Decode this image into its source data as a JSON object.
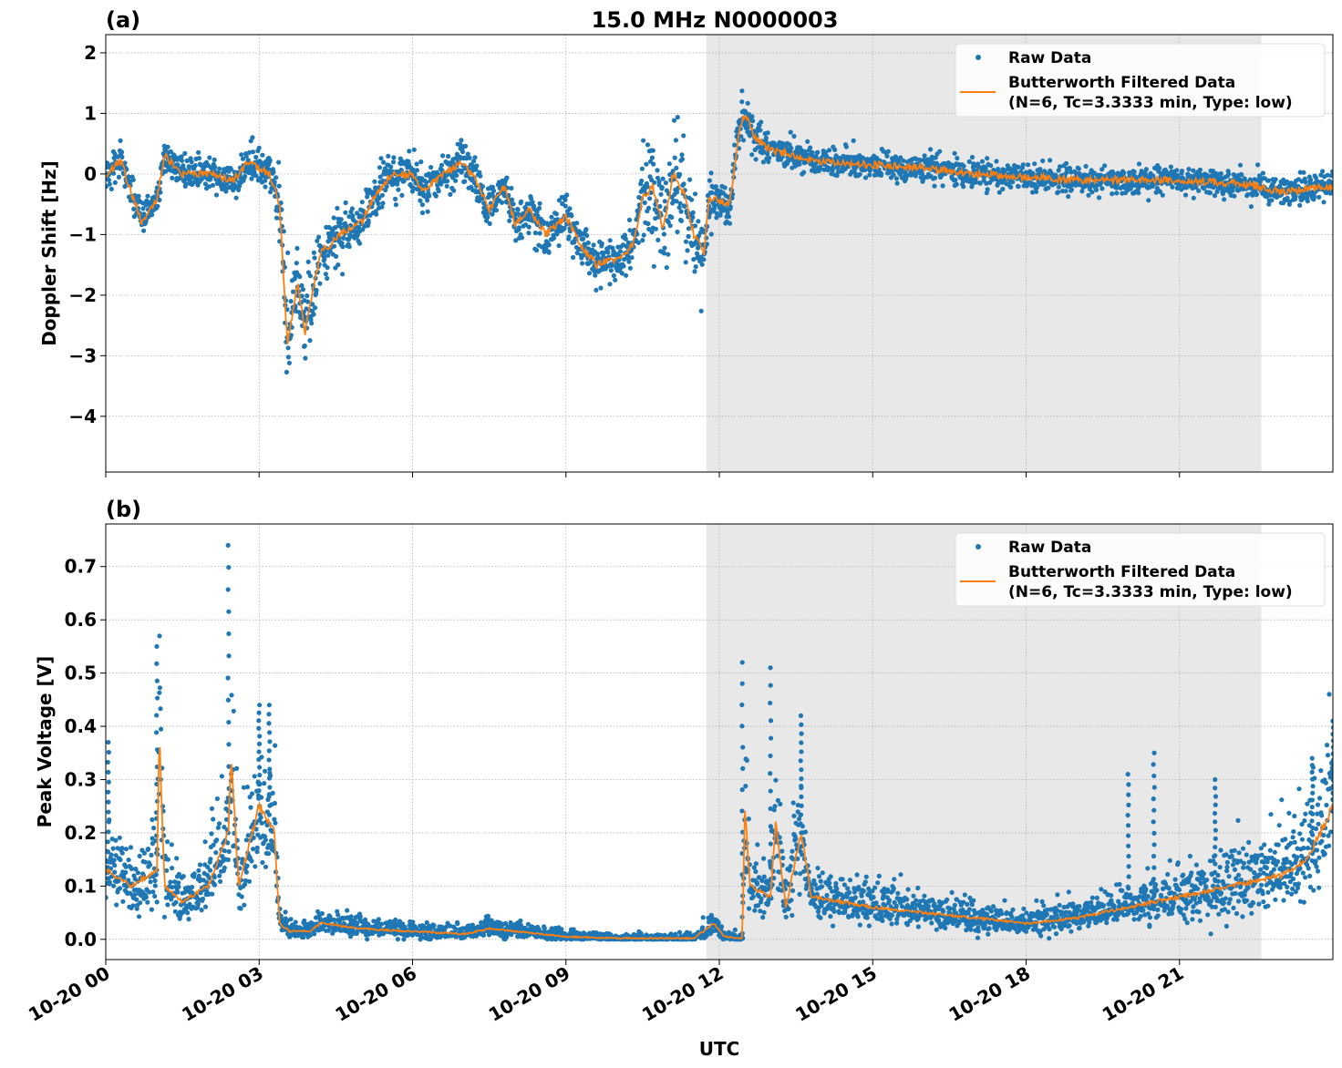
{
  "title": "15.0 MHz N0000003",
  "xlabel": "UTC",
  "x_tick_labels": [
    "10-20 00",
    "10-20 03",
    "10-20 06",
    "10-20 09",
    "10-20 12",
    "10-20 15",
    "10-20 18",
    "10-20 21"
  ],
  "legend": {
    "raw": "Raw Data",
    "filtered_line1": "Butterworth Filtered Data",
    "filtered_line2": "(N=6, Tc=3.3333 min, Type: low)"
  },
  "colors": {
    "raw": "#1f77b4",
    "filtered": "#ff7f0e",
    "shade": "#e8e8e8",
    "grid": "#b0b0b0"
  },
  "chart_data": [
    {
      "type": "scatter+line",
      "panel_label": "(a)",
      "ylabel": "Doppler Shift [Hz]",
      "x_unit": "hours UTC on 10-20",
      "xlim": [
        0,
        24
      ],
      "ylim": [
        -4.92,
        2.3
      ],
      "y_ticks": [
        -4,
        -3,
        -2,
        -1,
        0,
        1,
        2
      ],
      "y_tick_labels": [
        "−4",
        "−3",
        "−2",
        "−1",
        "0",
        "1",
        "2"
      ],
      "grid": true,
      "legend_position": "top-right",
      "shaded_interval": [
        11.75,
        22.6
      ],
      "filtered": {
        "x": [
          0,
          0.3,
          0.7,
          1.0,
          1.15,
          1.5,
          2,
          2.5,
          2.8,
          3.2,
          3.4,
          3.55,
          3.75,
          3.9,
          4.2,
          4.6,
          5.0,
          5.3,
          5.6,
          6.0,
          6.2,
          6.6,
          7.0,
          7.3,
          7.5,
          7.8,
          8.0,
          8.3,
          8.6,
          9.0,
          9.3,
          9.6,
          10.0,
          10.3,
          10.5,
          10.7,
          10.9,
          11.1,
          11.3,
          11.5,
          11.7,
          11.8,
          12.2,
          12.4,
          12.5,
          12.7,
          13.0,
          13.5,
          14,
          15,
          16,
          17,
          18,
          19,
          20,
          21,
          22,
          22.5,
          23,
          23.5,
          24
        ],
        "y": [
          0,
          0.2,
          -0.8,
          -0.4,
          0.3,
          0,
          0,
          -0.1,
          0.2,
          0,
          -0.5,
          -2.8,
          -1.8,
          -2.6,
          -1.3,
          -1.0,
          -0.8,
          -0.3,
          0,
          0,
          -0.3,
          0,
          0.2,
          -0.2,
          -0.6,
          -0.2,
          -0.8,
          -0.6,
          -1.0,
          -0.7,
          -1.2,
          -1.5,
          -1.4,
          -1.2,
          -0.4,
          -0.2,
          -0.9,
          0,
          -0.3,
          -1.0,
          -1.3,
          -0.4,
          -0.5,
          0.8,
          1.0,
          0.6,
          0.4,
          0.3,
          0.2,
          0.15,
          0.1,
          0,
          -0.05,
          -0.1,
          -0.1,
          -0.1,
          -0.15,
          -0.2,
          -0.3,
          -0.25,
          -0.2
        ]
      },
      "raw_spread": {
        "x": [
          0,
          3.3,
          3.5,
          4.2,
          5,
          10.3,
          10.5,
          11.5,
          11.8,
          12.4,
          13,
          14,
          24
        ],
        "y": [
          0.25,
          0.25,
          0.8,
          0.5,
          0.3,
          0.35,
          0.8,
          0.7,
          0.35,
          0.4,
          0.25,
          0.2,
          0.2
        ]
      }
    },
    {
      "type": "scatter+line",
      "panel_label": "(b)",
      "ylabel": "Peak Voltage [V]",
      "x_unit": "hours UTC on 10-20",
      "xlim": [
        0,
        24
      ],
      "ylim": [
        -0.038,
        0.78
      ],
      "y_ticks": [
        0,
        0.1,
        0.2,
        0.3,
        0.4,
        0.5,
        0.6,
        0.7
      ],
      "y_tick_labels": [
        "0.0",
        "0.1",
        "0.2",
        "0.3",
        "0.4",
        "0.5",
        "0.6",
        "0.7"
      ],
      "grid": true,
      "legend_position": "top-right",
      "shaded_interval": [
        11.75,
        22.6
      ],
      "filtered": {
        "x": [
          0,
          0.5,
          1.0,
          1.05,
          1.15,
          1.5,
          2,
          2.4,
          2.45,
          2.6,
          3,
          3.3,
          3.4,
          3.6,
          4,
          4.2,
          5,
          6,
          7,
          7.5,
          8.5,
          9,
          10,
          11.5,
          11.9,
          12.1,
          12.45,
          12.5,
          12.6,
          13,
          13.1,
          13.3,
          13.6,
          13.8,
          15,
          16,
          17,
          18,
          19,
          20,
          21,
          22,
          23,
          23.5,
          24
        ],
        "y": [
          0.13,
          0.1,
          0.13,
          0.38,
          0.1,
          0.07,
          0.1,
          0.2,
          0.35,
          0.1,
          0.25,
          0.2,
          0.03,
          0.015,
          0.015,
          0.03,
          0.02,
          0.015,
          0.01,
          0.02,
          0.01,
          0.005,
          0.002,
          0.002,
          0.03,
          0.005,
          0.002,
          0.25,
          0.1,
          0.08,
          0.22,
          0.06,
          0.2,
          0.08,
          0.06,
          0.05,
          0.04,
          0.03,
          0.04,
          0.06,
          0.08,
          0.1,
          0.12,
          0.15,
          0.25
        ]
      },
      "peaks": {
        "x": [
          0.05,
          1.0,
          2.4,
          3.0,
          3.2,
          12.45,
          13.0,
          13.6,
          20.0,
          20.5,
          21.7,
          23.6,
          24.0
        ],
        "y": [
          0.37,
          0.55,
          0.74,
          0.44,
          0.44,
          0.52,
          0.51,
          0.42,
          0.31,
          0.35,
          0.3,
          0.34,
          0.41
        ]
      }
    }
  ]
}
